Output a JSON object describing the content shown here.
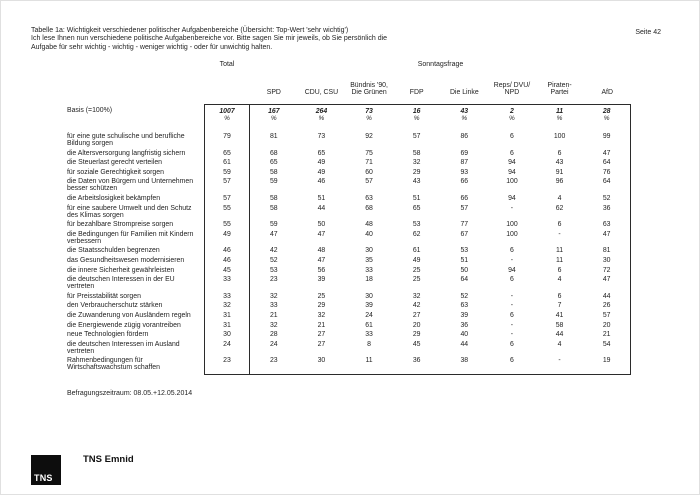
{
  "header": {
    "title_lines": [
      "Tabelle 1a: Wichtigkeit verschiedener politischer Aufgabenbereiche (Übersicht: Top-Wert 'sehr wichtig')",
      "Ich lese Ihnen nun verschiedene politische Aufgabenbereiche vor. Bitte sagen Sie mir jeweils, ob Sie persönlich die",
      "Aufgabe für sehr wichtig - wichtig - weniger wichtig - oder für unwichtig halten."
    ],
    "page_number": "Seite 42"
  },
  "table": {
    "total_label": "Total",
    "group_label": "Sonntagsfrage",
    "party_columns": [
      [
        "SPD"
      ],
      [
        "CDU, CSU"
      ],
      [
        "Bündnis '90,",
        "Die Grünen"
      ],
      [
        "FDP"
      ],
      [
        "Die Linke"
      ],
      [
        "Reps/ DVU/",
        "NPD"
      ],
      [
        "Piraten-",
        "Partei"
      ],
      [
        "AfD"
      ]
    ],
    "basis_label": "Basis (=100%)",
    "percent_sign": "%",
    "basis_values": [
      "1007",
      "167",
      "264",
      "73",
      "16",
      "43",
      "2",
      "11",
      "28"
    ],
    "rows": [
      {
        "label_lines": [
          "für eine gute schulische und berufliche",
          "Bildung sorgen"
        ],
        "values": [
          "79",
          "81",
          "73",
          "92",
          "57",
          "86",
          "6",
          "100",
          "99"
        ]
      },
      {
        "label_lines": [
          "die Altersversorgung langfristig sichern"
        ],
        "values": [
          "65",
          "68",
          "65",
          "75",
          "58",
          "69",
          "6",
          "6",
          "47"
        ]
      },
      {
        "label_lines": [
          "die Steuerlast gerecht verteilen"
        ],
        "values": [
          "61",
          "65",
          "49",
          "71",
          "32",
          "87",
          "94",
          "43",
          "64"
        ]
      },
      {
        "label_lines": [
          "für soziale Gerechtigkeit sorgen"
        ],
        "values": [
          "59",
          "58",
          "49",
          "60",
          "29",
          "93",
          "94",
          "91",
          "76"
        ]
      },
      {
        "label_lines": [
          "die Daten von Bürgern und Unternehmen",
          "besser schützen"
        ],
        "values": [
          "57",
          "59",
          "46",
          "57",
          "43",
          "66",
          "100",
          "96",
          "64"
        ]
      },
      {
        "label_lines": [
          "die Arbeitslosigkeit bekämpfen"
        ],
        "values": [
          "57",
          "58",
          "51",
          "63",
          "51",
          "66",
          "94",
          "4",
          "52"
        ]
      },
      {
        "label_lines": [
          "für eine saubere Umwelt und den Schutz",
          "des Klimas sorgen"
        ],
        "values": [
          "55",
          "58",
          "44",
          "68",
          "65",
          "57",
          "-",
          "62",
          "36"
        ]
      },
      {
        "label_lines": [
          "für bezahlbare Strompreise sorgen"
        ],
        "values": [
          "55",
          "59",
          "50",
          "48",
          "53",
          "77",
          "100",
          "6",
          "63"
        ]
      },
      {
        "label_lines": [
          "die Bedingungen für Familien mit Kindern",
          "verbessern"
        ],
        "values": [
          "49",
          "47",
          "47",
          "40",
          "62",
          "67",
          "100",
          "-",
          "47"
        ]
      },
      {
        "label_lines": [
          "die Staatsschulden begrenzen"
        ],
        "values": [
          "46",
          "42",
          "48",
          "30",
          "61",
          "53",
          "6",
          "11",
          "81"
        ]
      },
      {
        "label_lines": [
          "das Gesundheitswesen modernisieren"
        ],
        "values": [
          "46",
          "52",
          "47",
          "35",
          "49",
          "51",
          "-",
          "11",
          "30"
        ]
      },
      {
        "label_lines": [
          "die innere Sicherheit gewährleisten"
        ],
        "values": [
          "45",
          "53",
          "56",
          "33",
          "25",
          "50",
          "94",
          "6",
          "72"
        ]
      },
      {
        "label_lines": [
          "die deutschen Interessen in der EU",
          "vertreten"
        ],
        "values": [
          "33",
          "23",
          "39",
          "18",
          "25",
          "64",
          "6",
          "4",
          "47"
        ]
      },
      {
        "label_lines": [
          "für Preisstabilität sorgen"
        ],
        "values": [
          "33",
          "32",
          "25",
          "30",
          "32",
          "52",
          "-",
          "6",
          "44"
        ]
      },
      {
        "label_lines": [
          "den Verbraucherschutz stärken"
        ],
        "values": [
          "32",
          "33",
          "29",
          "39",
          "42",
          "63",
          "-",
          "7",
          "26"
        ]
      },
      {
        "label_lines": [
          "die Zuwanderung von Ausländern regeln"
        ],
        "values": [
          "31",
          "21",
          "32",
          "24",
          "27",
          "39",
          "6",
          "41",
          "57"
        ]
      },
      {
        "label_lines": [
          "die Energiewende zügig vorantreiben"
        ],
        "values": [
          "31",
          "32",
          "21",
          "61",
          "20",
          "36",
          "-",
          "58",
          "20"
        ]
      },
      {
        "label_lines": [
          "neue Technologien fördern"
        ],
        "values": [
          "30",
          "28",
          "27",
          "33",
          "29",
          "40",
          "-",
          "44",
          "21"
        ]
      },
      {
        "label_lines": [
          "die deutschen Interessen im Ausland",
          "vertreten"
        ],
        "values": [
          "24",
          "24",
          "27",
          "8",
          "45",
          "44",
          "6",
          "4",
          "54"
        ]
      },
      {
        "label_lines": [
          "Rahmenbedingungen für",
          "Wirtschaftswachstum schaffen"
        ],
        "values": [
          "23",
          "23",
          "30",
          "11",
          "36",
          "38",
          "6",
          "-",
          "19"
        ]
      }
    ]
  },
  "footer": {
    "survey_period": "Befragungszeitraum: 08.05.+12.05.2014",
    "brand_name": "TNS Emnid",
    "logo_text": "TNS"
  }
}
